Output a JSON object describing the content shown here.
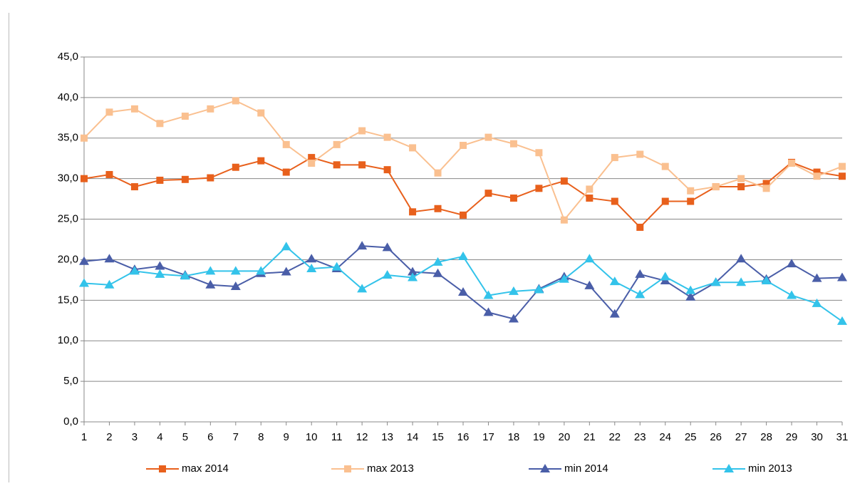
{
  "chart_data": {
    "type": "line",
    "categories": [
      "1",
      "2",
      "3",
      "4",
      "5",
      "6",
      "7",
      "8",
      "9",
      "10",
      "11",
      "12",
      "13",
      "14",
      "15",
      "16",
      "17",
      "18",
      "19",
      "20",
      "21",
      "22",
      "23",
      "24",
      "25",
      "26",
      "27",
      "28",
      "29",
      "30",
      "31"
    ],
    "series": [
      {
        "name": "max 2014",
        "color": "#e8601c",
        "marker": "square",
        "values": [
          30.0,
          30.5,
          29.0,
          29.8,
          29.9,
          30.1,
          31.4,
          32.2,
          30.8,
          32.6,
          31.7,
          31.7,
          31.1,
          25.9,
          26.3,
          25.5,
          28.2,
          27.6,
          28.8,
          29.7,
          27.6,
          27.2,
          24.0,
          27.2,
          27.2,
          29.0,
          29.0,
          29.4,
          32.0,
          30.8,
          30.3
        ]
      },
      {
        "name": "max 2013",
        "color": "#fac090",
        "marker": "square",
        "values": [
          35.0,
          38.2,
          38.6,
          36.8,
          37.7,
          38.6,
          39.6,
          38.1,
          34.2,
          31.9,
          34.2,
          35.9,
          35.1,
          33.8,
          30.7,
          34.1,
          35.1,
          34.3,
          33.2,
          24.9,
          28.7,
          32.6,
          33.0,
          31.5,
          28.5,
          29.0,
          30.0,
          28.8,
          31.9,
          30.3,
          31.5
        ]
      },
      {
        "name": "min 2014",
        "color": "#4a5ea8",
        "marker": "triangle",
        "values": [
          19.8,
          20.1,
          18.8,
          19.2,
          18.1,
          16.9,
          16.7,
          18.3,
          18.5,
          20.1,
          18.9,
          21.7,
          21.5,
          18.5,
          18.3,
          16.0,
          13.5,
          12.7,
          16.4,
          17.9,
          16.8,
          13.3,
          18.2,
          17.4,
          15.4,
          17.2,
          20.1,
          17.6,
          19.5,
          17.7,
          17.8
        ]
      },
      {
        "name": "min 2013",
        "color": "#33c3ea",
        "marker": "triangle",
        "values": [
          17.1,
          16.9,
          18.6,
          18.2,
          18.0,
          18.6,
          18.6,
          18.6,
          21.6,
          18.9,
          19.1,
          16.4,
          18.1,
          17.8,
          19.7,
          20.4,
          15.6,
          16.1,
          16.3,
          17.6,
          20.1,
          17.3,
          15.7,
          17.9,
          16.2,
          17.2,
          17.2,
          17.4,
          15.6,
          14.6,
          12.4
        ]
      }
    ],
    "ylim": [
      0,
      45
    ],
    "yticks": [
      {
        "value": 0,
        "label": "0,0"
      },
      {
        "value": 5,
        "label": "5,0"
      },
      {
        "value": 10,
        "label": "10,0"
      },
      {
        "value": 15,
        "label": "15,0"
      },
      {
        "value": 20,
        "label": "20,0"
      },
      {
        "value": 25,
        "label": "25,0"
      },
      {
        "value": 30,
        "label": "30,0"
      },
      {
        "value": 35,
        "label": "35,0"
      },
      {
        "value": 40,
        "label": "40,0"
      },
      {
        "value": 45,
        "label": "45,0"
      }
    ],
    "grid": true,
    "legend": "bottom"
  }
}
